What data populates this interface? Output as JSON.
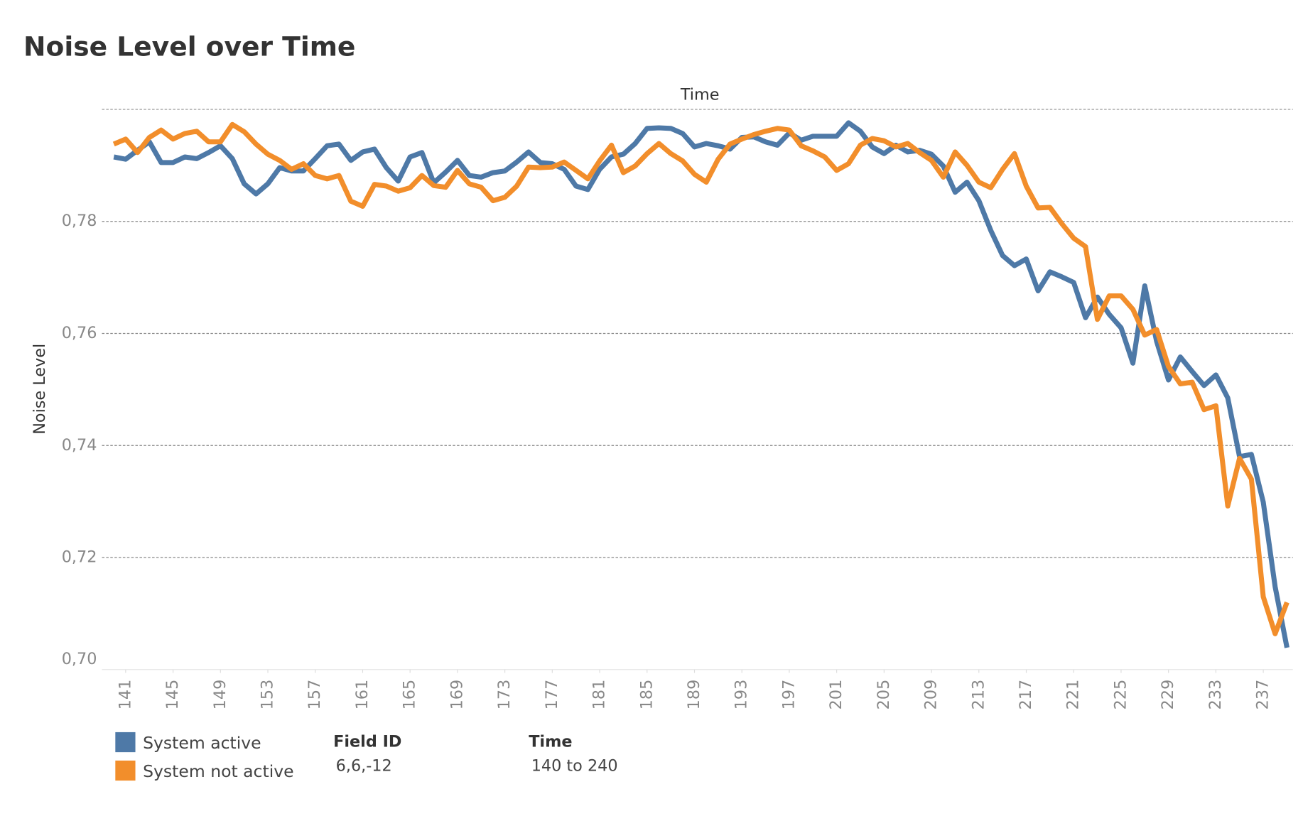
{
  "chart_data": {
    "type": "line",
    "title": "Noise Level over Time",
    "x_label": "Time",
    "y_label": "Noise Level",
    "x": [
      140,
      141,
      142,
      143,
      144,
      145,
      146,
      147,
      148,
      149,
      150,
      151,
      152,
      153,
      154,
      155,
      156,
      157,
      158,
      159,
      160,
      161,
      162,
      163,
      164,
      165,
      166,
      167,
      168,
      169,
      170,
      171,
      172,
      173,
      174,
      175,
      176,
      177,
      178,
      179,
      180,
      181,
      182,
      183,
      184,
      185,
      186,
      187,
      188,
      189,
      190,
      191,
      192,
      193,
      194,
      195,
      196,
      197,
      198,
      199,
      200,
      201,
      202,
      203,
      204,
      205,
      206,
      207,
      208,
      209,
      210,
      211,
      212,
      213,
      214,
      215,
      216,
      217,
      218,
      219,
      220,
      221,
      222,
      223,
      224,
      225,
      226,
      227,
      228,
      229,
      230,
      231,
      232,
      233,
      234,
      235,
      236,
      237,
      238,
      239
    ],
    "series": [
      {
        "name": "System active",
        "color": "#4e79a7",
        "values": [
          0.7915,
          0.7911,
          0.7927,
          0.7942,
          0.7905,
          0.7905,
          0.7915,
          0.7912,
          0.7923,
          0.7935,
          0.7912,
          0.7867,
          0.7849,
          0.7867,
          0.7896,
          0.789,
          0.789,
          0.7912,
          0.7935,
          0.7938,
          0.7909,
          0.7924,
          0.7929,
          0.7896,
          0.7872,
          0.7915,
          0.7923,
          0.7869,
          0.7888,
          0.7909,
          0.7882,
          0.7879,
          0.7887,
          0.789,
          0.7906,
          0.7924,
          0.7905,
          0.7903,
          0.7893,
          0.7863,
          0.7857,
          0.7893,
          0.7915,
          0.792,
          0.7939,
          0.7966,
          0.7967,
          0.7966,
          0.7957,
          0.7933,
          0.7939,
          0.7935,
          0.7929,
          0.795,
          0.7951,
          0.7942,
          0.7936,
          0.7958,
          0.7945,
          0.7952,
          0.7952,
          0.7952,
          0.7976,
          0.7961,
          0.7933,
          0.7921,
          0.7936,
          0.7924,
          0.7927,
          0.792,
          0.7899,
          0.7852,
          0.787,
          0.7837,
          0.7784,
          0.7739,
          0.7721,
          0.7733,
          0.7676,
          0.771,
          0.7701,
          0.7691,
          0.7628,
          0.7665,
          0.7634,
          0.761,
          0.7547,
          0.7685,
          0.7586,
          0.7517,
          0.7558,
          0.7532,
          0.7507,
          0.7526,
          0.7485,
          0.738,
          0.7384,
          0.7299,
          0.7148,
          0.7039
        ]
      },
      {
        "name": "System not active",
        "color": "#f28e2b",
        "values": [
          0.7938,
          0.7947,
          0.7923,
          0.795,
          0.7963,
          0.7947,
          0.7957,
          0.7961,
          0.7942,
          0.7942,
          0.7973,
          0.796,
          0.7938,
          0.792,
          0.7909,
          0.7893,
          0.7903,
          0.7882,
          0.7876,
          0.7882,
          0.7836,
          0.7827,
          0.7866,
          0.7863,
          0.7854,
          0.786,
          0.7882,
          0.7864,
          0.7861,
          0.7891,
          0.7867,
          0.7861,
          0.7837,
          0.7843,
          0.7863,
          0.7897,
          0.7896,
          0.7897,
          0.7906,
          0.7891,
          0.7876,
          0.7908,
          0.7936,
          0.7887,
          0.7899,
          0.7921,
          0.7939,
          0.7921,
          0.7908,
          0.7884,
          0.787,
          0.7911,
          0.7938,
          0.7947,
          0.7955,
          0.7961,
          0.7966,
          0.7963,
          0.7935,
          0.7926,
          0.7915,
          0.7891,
          0.7903,
          0.7936,
          0.7948,
          0.7944,
          0.7933,
          0.7939,
          0.7923,
          0.7909,
          0.7879,
          0.7924,
          0.79,
          0.787,
          0.786,
          0.7893,
          0.7921,
          0.7863,
          0.7824,
          0.7825,
          0.7796,
          0.777,
          0.7755,
          0.7625,
          0.7667,
          0.7667,
          0.7643,
          0.7597,
          0.7607,
          0.7541,
          0.751,
          0.7513,
          0.7464,
          0.7471,
          0.7292,
          0.7377,
          0.734,
          0.713,
          0.7064,
          0.712
        ]
      }
    ],
    "xlim": [
      139,
      239.5
    ],
    "xticks": [
      141,
      145,
      149,
      153,
      157,
      161,
      165,
      169,
      173,
      177,
      181,
      185,
      189,
      193,
      197,
      201,
      205,
      209,
      213,
      217,
      221,
      225,
      229,
      233,
      237
    ],
    "ylim": [
      0.7,
      0.8
    ],
    "yticks": [
      {
        "value": 0.7,
        "label": "0,70"
      },
      {
        "value": 0.72,
        "label": "0,72"
      },
      {
        "value": 0.74,
        "label": "0,74"
      },
      {
        "value": 0.76,
        "label": "0,76"
      },
      {
        "value": 0.78,
        "label": "0,78"
      }
    ],
    "grid": true,
    "filters": [
      {
        "title": "Field ID",
        "value": "6,6,-12"
      },
      {
        "title": "Time",
        "value": "140 to 240"
      }
    ]
  }
}
